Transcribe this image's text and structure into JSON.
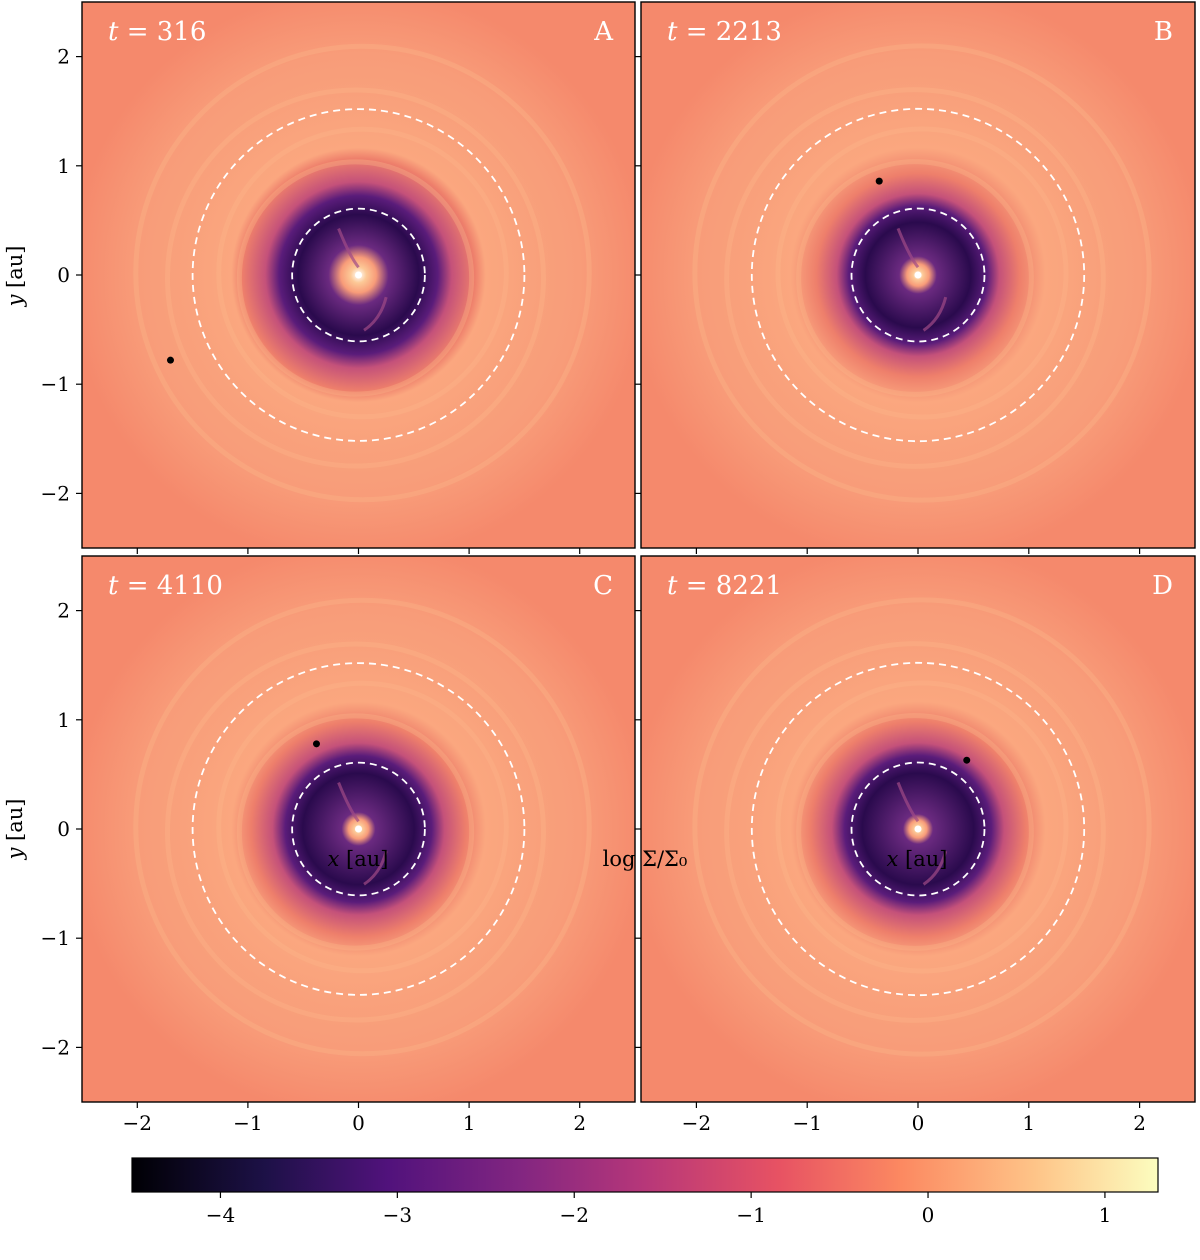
{
  "chart_data": {
    "type": "heatmap",
    "colormap": "magma",
    "colors": {
      "background": "#f5896c",
      "ring_outer": "#fba77f",
      "ring_mid": "#f89c79",
      "cavity_edge": "#5a1c7a",
      "cavity_dark": "#2a0a4d",
      "cavity_core": "#6b2a80",
      "inner_glow": "#fcc896",
      "center": "#ffffff",
      "guide_circle": "#ffffff",
      "planet": "#000000"
    },
    "xlim": [
      -2.5,
      2.5
    ],
    "ylim": [
      -2.5,
      2.5
    ],
    "xticks": [
      -2,
      -1,
      0,
      1,
      2
    ],
    "yticks": [
      -2,
      -1,
      0,
      1,
      2
    ],
    "xlabel_var": "x",
    "xlabel_unit": "[au]",
    "ylabel_var": "y",
    "ylabel_unit": "[au]",
    "guide_circles_au": [
      0.6,
      1.5
    ],
    "panels": [
      {
        "letter": "A",
        "time_label": "t",
        "time_value": "316",
        "planet": [
          -1.7,
          -0.78
        ],
        "inner_glow_radius": 0.16,
        "cavity_outer_radius": 0.78
      },
      {
        "letter": "B",
        "time_label": "t",
        "time_value": "2213",
        "planet": [
          -0.35,
          0.86
        ],
        "inner_glow_radius": 0.1,
        "cavity_outer_radius": 0.68
      },
      {
        "letter": "C",
        "time_label": "t",
        "time_value": "4110",
        "planet": [
          -0.38,
          0.78
        ],
        "inner_glow_radius": 0.09,
        "cavity_outer_radius": 0.72
      },
      {
        "letter": "D",
        "time_label": "t",
        "time_value": "8221",
        "planet": [
          0.44,
          0.63
        ],
        "inner_glow_radius": 0.08,
        "cavity_outer_radius": 0.72
      }
    ],
    "colorbar": {
      "label": "log Σ/Σ₀",
      "range": [
        -4.5,
        1.3
      ],
      "ticks": [
        -4,
        -3,
        -2,
        -1,
        0,
        1
      ],
      "tick_labels": [
        "−4",
        "−3",
        "−2",
        "−1",
        "0",
        "1"
      ]
    }
  }
}
